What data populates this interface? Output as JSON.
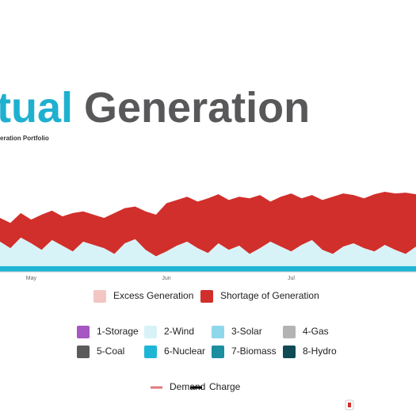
{
  "chart_data": {
    "type": "stacked_area",
    "title": {
      "highlight": "tual",
      "rest": "Generation"
    },
    "subtitle": "eration Portfolio",
    "categories": [
      null,
      null,
      null,
      "May",
      null,
      null,
      null,
      null,
      null,
      null,
      null,
      null,
      null,
      null,
      null,
      null,
      "Jun",
      null,
      null,
      null,
      null,
      null,
      null,
      null,
      null,
      null,
      null,
      null,
      "Jul",
      null,
      null,
      null,
      null,
      null,
      null,
      null,
      null,
      null,
      null,
      null,
      null
    ],
    "ylim": [
      0,
      100
    ],
    "series": [
      {
        "name": "Excess Generation",
        "color": "#f2c6c2"
      },
      {
        "name": "Shortage of Generation",
        "color": "#d12f2b",
        "values": [
          29,
          31,
          30,
          29,
          43,
          36,
          36,
          47,
          37,
          37,
          37,
          50,
          43,
          40,
          47,
          51,
          59,
          56,
          55,
          57,
          67,
          60,
          61,
          60,
          68,
          65,
          49,
          61,
          71,
          57,
          55,
          61,
          70,
          65,
          59,
          61,
          70,
          65,
          69,
          75,
          64
        ]
      },
      {
        "name": "1-Storage",
        "color": "#a757c2"
      },
      {
        "name": "2-Wind",
        "color": "#d8f3f7",
        "values": [
          30,
          22,
          35,
          28,
          20,
          32,
          25,
          18,
          30,
          26,
          22,
          15,
          28,
          33,
          20,
          12,
          18,
          25,
          30,
          22,
          16,
          28,
          20,
          25,
          15,
          22,
          30,
          24,
          18,
          26,
          32,
          20,
          15,
          24,
          28,
          22,
          18,
          26,
          20,
          15,
          24
        ]
      },
      {
        "name": "3-Solar",
        "color": "#8fd8ec"
      },
      {
        "name": "4-Gas",
        "color": "#b3b3b3"
      },
      {
        "name": "5-Coal",
        "color": "#5b5b5b"
      },
      {
        "name": "6-Nuclear",
        "color": "#1fb6d6",
        "values": [
          7,
          7,
          7,
          7,
          7,
          7,
          7,
          7,
          7,
          7,
          7,
          7,
          7,
          7,
          7,
          7,
          7,
          7,
          7,
          7,
          7,
          7,
          7,
          7,
          7,
          7,
          7,
          7,
          7,
          7,
          7,
          7,
          7,
          7,
          7,
          7,
          7,
          7,
          7,
          7,
          7
        ]
      },
      {
        "name": "7-Biomass",
        "color": "#1c8e9f"
      },
      {
        "name": "8-Hydro",
        "color": "#0f4a55"
      },
      {
        "name": "Demand",
        "color": "#e07a7a",
        "kind": "line"
      },
      {
        "name": "Charge",
        "color": "#000000",
        "kind": "line"
      }
    ]
  }
}
